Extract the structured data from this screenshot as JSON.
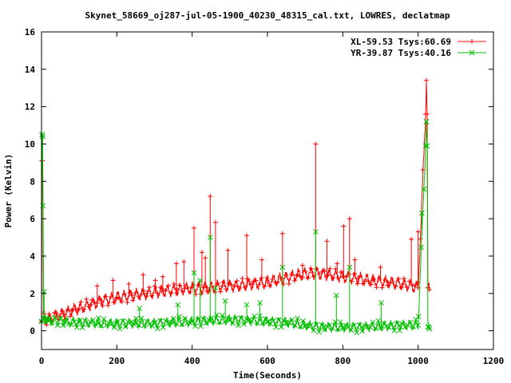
{
  "chart_data": {
    "type": "line",
    "title": "Skynet_58669_oj287-jul-05-1900_40230_48315_cal.txt, LOWRES, declatmap",
    "xlabel": "Time(Seconds)",
    "ylabel": "Power (Kelvin)",
    "xlim": [
      0,
      1200
    ],
    "ylim": [
      0,
      16
    ],
    "y_range_shown": [
      -1,
      16
    ],
    "xticks": [
      0,
      200,
      400,
      600,
      800,
      1000,
      1200
    ],
    "yticks": [
      0,
      2,
      4,
      6,
      8,
      10,
      12,
      14,
      16
    ],
    "grid": false,
    "legend_position": "top-right",
    "series": [
      {
        "name": "XL-59.53 Tsys:60.69",
        "color": "#ff0000",
        "marker": "plus",
        "x": [
          0,
          1,
          2,
          3,
          5,
          8,
          12,
          20,
          40,
          60,
          80,
          100,
          130,
          160,
          200,
          240,
          280,
          320,
          360,
          400,
          440,
          480,
          520,
          560,
          600,
          640,
          680,
          720,
          760,
          800,
          840,
          880,
          920,
          960,
          1000,
          1020,
          1022,
          1024,
          1026,
          1030
        ],
        "values": [
          0.5,
          9.1,
          9.1,
          9.1,
          1.0,
          0.7,
          0.6,
          0.6,
          0.8,
          0.9,
          1.1,
          1.2,
          1.4,
          1.6,
          1.8,
          1.9,
          2.0,
          2.1,
          2.2,
          2.3,
          2.3,
          2.4,
          2.4,
          2.5,
          2.6,
          2.8,
          3.0,
          3.1,
          3.0,
          2.9,
          2.8,
          2.7,
          2.6,
          2.5,
          2.3,
          11.6,
          13.4,
          11.6,
          2.3,
          2.2
        ],
        "spikes": [
          {
            "x": 148,
            "value": 2.4
          },
          {
            "x": 190,
            "value": 2.7
          },
          {
            "x": 232,
            "value": 2.5
          },
          {
            "x": 270,
            "value": 3.0
          },
          {
            "x": 302,
            "value": 2.7
          },
          {
            "x": 322,
            "value": 2.9
          },
          {
            "x": 358,
            "value": 3.6
          },
          {
            "x": 378,
            "value": 3.7
          },
          {
            "x": 405,
            "value": 5.5
          },
          {
            "x": 426,
            "value": 4.2
          },
          {
            "x": 435,
            "value": 3.9
          },
          {
            "x": 448,
            "value": 7.2
          },
          {
            "x": 462,
            "value": 5.8
          },
          {
            "x": 495,
            "value": 4.3
          },
          {
            "x": 545,
            "value": 5.1
          },
          {
            "x": 585,
            "value": 3.8
          },
          {
            "x": 640,
            "value": 5.2
          },
          {
            "x": 693,
            "value": 3.5
          },
          {
            "x": 728,
            "value": 10.0
          },
          {
            "x": 758,
            "value": 4.8
          },
          {
            "x": 785,
            "value": 3.6
          },
          {
            "x": 802,
            "value": 5.6
          },
          {
            "x": 818,
            "value": 6.0
          },
          {
            "x": 832,
            "value": 3.8
          },
          {
            "x": 900,
            "value": 3.4
          },
          {
            "x": 982,
            "value": 4.9
          },
          {
            "x": 1000,
            "value": 5.3
          }
        ]
      },
      {
        "name": "YR-39.87 Tsys:40.16",
        "color": "#00c000",
        "marker": "x",
        "x": [
          0,
          1,
          2,
          3,
          4,
          6,
          10,
          20,
          60,
          100,
          150,
          200,
          250,
          300,
          350,
          400,
          450,
          500,
          550,
          600,
          650,
          700,
          750,
          800,
          850,
          900,
          950,
          1000,
          1020,
          1022,
          1024,
          1026,
          1030
        ],
        "values": [
          0.5,
          10.5,
          10.5,
          10.4,
          6.7,
          0.7,
          0.6,
          0.55,
          0.5,
          0.45,
          0.4,
          0.4,
          0.4,
          0.4,
          0.45,
          0.5,
          0.55,
          0.6,
          0.55,
          0.5,
          0.45,
          0.3,
          0.2,
          0.2,
          0.2,
          0.25,
          0.3,
          0.3,
          9.9,
          11.2,
          9.9,
          0.2,
          0.1
        ],
        "spikes": [
          {
            "x": 7,
            "value": 2.1
          },
          {
            "x": 260,
            "value": 1.2
          },
          {
            "x": 362,
            "value": 1.4
          },
          {
            "x": 405,
            "value": 3.1
          },
          {
            "x": 421,
            "value": 2.7
          },
          {
            "x": 448,
            "value": 5.0
          },
          {
            "x": 462,
            "value": 2.3
          },
          {
            "x": 488,
            "value": 1.6
          },
          {
            "x": 545,
            "value": 1.4
          },
          {
            "x": 580,
            "value": 1.5
          },
          {
            "x": 640,
            "value": 3.4
          },
          {
            "x": 728,
            "value": 5.3
          },
          {
            "x": 783,
            "value": 1.9
          },
          {
            "x": 818,
            "value": 3.4
          },
          {
            "x": 902,
            "value": 1.5
          },
          {
            "x": 1010,
            "value": 6.3
          }
        ]
      }
    ]
  }
}
